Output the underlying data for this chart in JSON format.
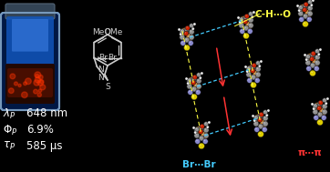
{
  "background_color": "#000000",
  "lambda_value": "648 nm",
  "phi_value": "6.9%",
  "tau_value": "585 μs",
  "label_color": "#ffffff",
  "ch_o_color": "#ffff44",
  "ch_o_text": "C-H⋯O",
  "br_br_color": "#44ccff",
  "br_br_text": "Br⋯Br",
  "pi_pi_color": "#ff3333",
  "pi_pi_text": "π⋯π",
  "struct_color": "#cccccc",
  "atom_C": "#909090",
  "atom_H": "#f0f0f0",
  "atom_N": "#8888cc",
  "atom_S": "#ddcc00",
  "atom_O": "#cc2200",
  "atom_Br": "#cc8833",
  "vial_blue_dark": "#001844",
  "vial_blue_mid": "#1155bb",
  "vial_blue_bright": "#4488ee",
  "vial_red_powder": "#551100",
  "vial_cap": "#334455"
}
